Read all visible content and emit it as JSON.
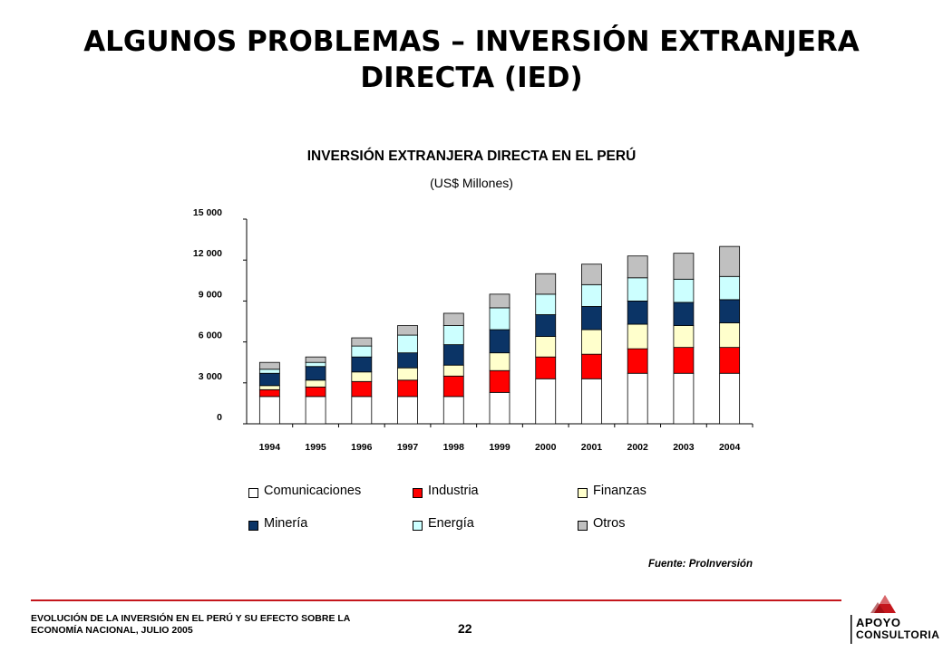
{
  "title_line1": "ALGUNOS PROBLEMAS – INVERSIÓN EXTRANJERA",
  "title_line2": "DIRECTA (IED)",
  "source": "Fuente: ProInversión",
  "footer": {
    "line1": "EVOLUCIÓN DE LA INVERSIÓN EN EL PERÚ Y SU EFECTO SOBRE LA",
    "line2": "ECONOMÍA NACIONAL, JULIO 2005",
    "page": "22"
  },
  "logo": {
    "line1": "APOYO",
    "line2": "CONSULTORIA",
    "accent": "#c4161c"
  },
  "chart_data": {
    "type": "bar",
    "stacked": true,
    "title": "INVERSIÓN EXTRANJERA DIRECTA EN EL PERÚ",
    "subtitle": "(US$ Millones)",
    "xlabel": "",
    "ylabel": "",
    "ylim": [
      0,
      15000
    ],
    "yticks": [
      0,
      3000,
      6000,
      9000,
      12000,
      15000
    ],
    "ytick_labels": [
      "0",
      "3 000",
      "6 000",
      "9 000",
      "12 000",
      "15 000"
    ],
    "categories": [
      "1994",
      "1995",
      "1996",
      "1997",
      "1998",
      "1999",
      "2000",
      "2001",
      "2002",
      "2003",
      "2004"
    ],
    "legend_position": "bottom",
    "series": [
      {
        "name": "Comunicaciones",
        "color": "#ffffff",
        "values": [
          2000,
          2000,
          2000,
          2000,
          2000,
          2300,
          3300,
          3300,
          3700,
          3700,
          3700
        ]
      },
      {
        "name": "Industria",
        "color": "#ff0000",
        "values": [
          500,
          700,
          1100,
          1200,
          1500,
          1600,
          1600,
          1800,
          1800,
          1900,
          1900
        ]
      },
      {
        "name": "Finanzas",
        "color": "#ffffcc",
        "values": [
          300,
          500,
          700,
          900,
          800,
          1300,
          1500,
          1800,
          1800,
          1600,
          1800
        ]
      },
      {
        "name": "Minería",
        "color": "#0b3466",
        "values": [
          900,
          1000,
          1100,
          1100,
          1500,
          1700,
          1600,
          1700,
          1700,
          1700,
          1700
        ]
      },
      {
        "name": "Energía",
        "color": "#ccffff",
        "values": [
          300,
          300,
          800,
          1300,
          1400,
          1600,
          1500,
          1600,
          1700,
          1700,
          1700
        ]
      },
      {
        "name": "Otros",
        "color": "#c0c0c0",
        "values": [
          500,
          400,
          600,
          700,
          900,
          1000,
          1500,
          1500,
          1600,
          1900,
          2200
        ]
      }
    ]
  }
}
